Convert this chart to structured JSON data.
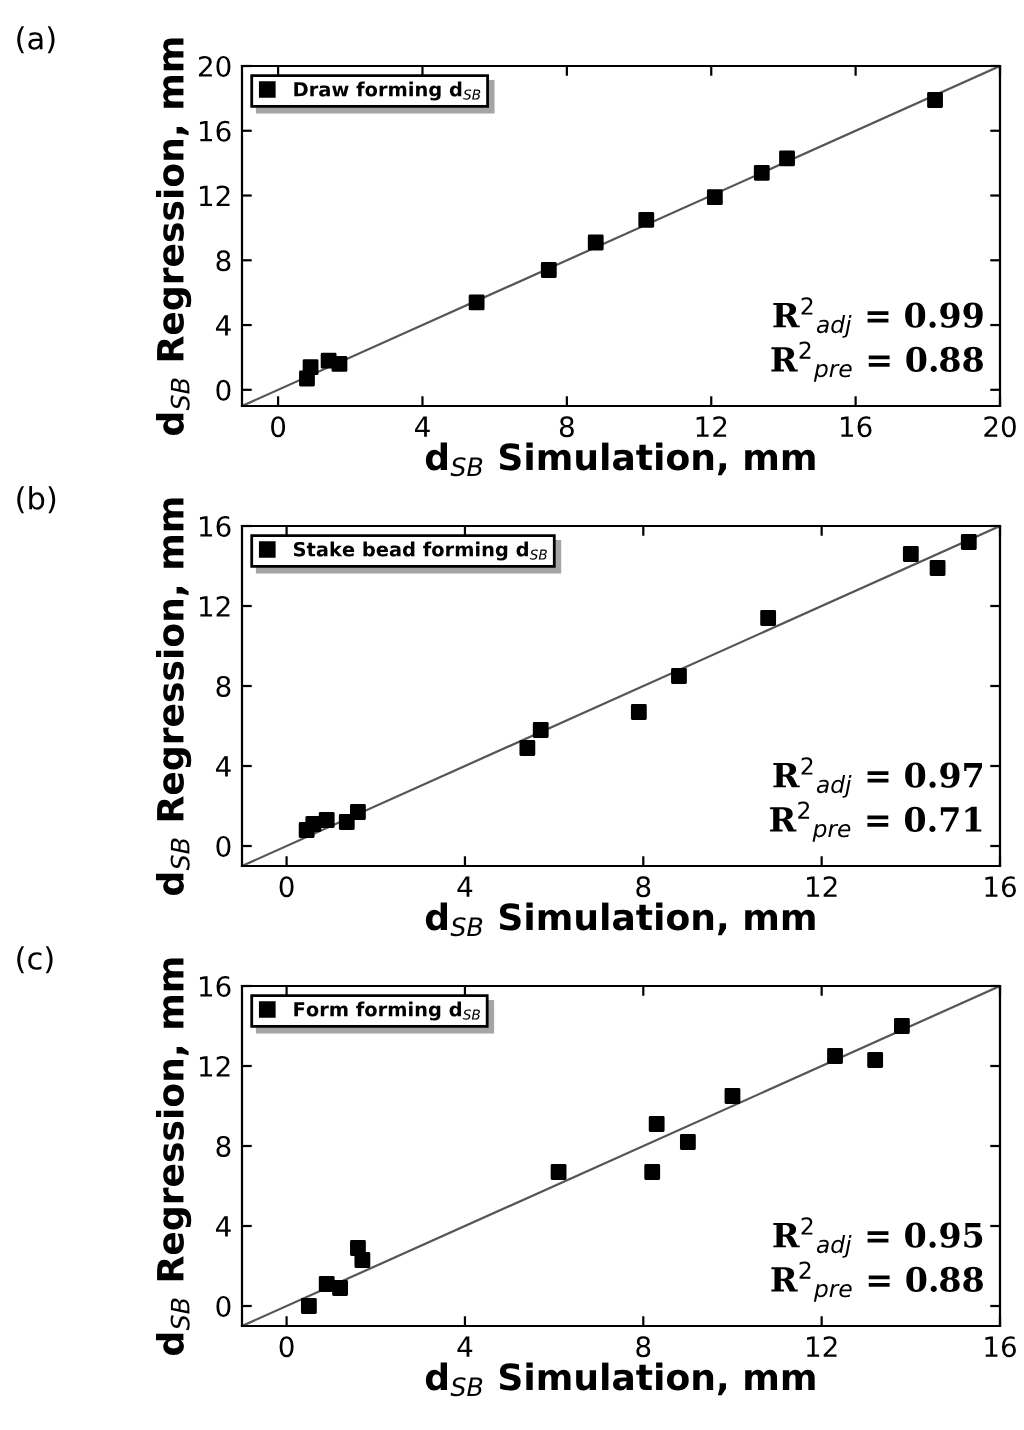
{
  "chart_data": [
    {
      "type": "scatter",
      "title": "(a)",
      "xlabel": "d$_{SB}$ Simulation, mm",
      "ylabel": "d$_{SB}$ Regression, mm",
      "xlim": [
        -1,
        20
      ],
      "ylim": [
        -1,
        20
      ],
      "xticks": [
        0,
        4,
        8,
        12,
        16,
        20
      ],
      "yticks": [
        0,
        4,
        8,
        12,
        16,
        20
      ],
      "legend": "top left",
      "grid": false,
      "series": [
        {
          "name": "Draw forming d$_{SB}$",
          "color": "#000000",
          "marker": "square",
          "x": [
            0.8,
            0.9,
            1.4,
            1.6,
            1.7,
            5.5,
            7.5,
            8.8,
            10.2,
            12.1,
            13.4,
            14.1,
            18.2
          ],
          "values": [
            0.7,
            1.4,
            1.8,
            null,
            1.6,
            5.4,
            7.4,
            9.1,
            10.5,
            11.9,
            13.4,
            14.3,
            17.9
          ]
        },
        {
          "type": "line",
          "color": "#555555",
          "x": [
            -1,
            20
          ],
          "values": [
            -1,
            20
          ]
        }
      ],
      "annotations": [
        "R$^{2}$$_{adj}$ = 0.99",
        "R$^{2}$$_{pre}$ = 0.88"
      ]
    },
    {
      "type": "scatter",
      "title": "(b)",
      "xlabel": "d$_{SB}$ Simulation, mm",
      "ylabel": "d$_{SB}$ Regression, mm",
      "xlim": [
        -1,
        16
      ],
      "ylim": [
        -1,
        16
      ],
      "xticks": [
        0,
        4,
        8,
        12,
        16
      ],
      "yticks": [
        0,
        4,
        8,
        12,
        16
      ],
      "legend": "top left",
      "grid": false,
      "series": [
        {
          "name": "Stake bead forming d$_{SB}$",
          "color": "#000000",
          "marker": "square",
          "x": [
            0.45,
            0.6,
            0.9,
            1.35,
            1.6,
            5.4,
            5.7,
            7.9,
            8.8,
            10.8,
            14.0,
            14.6,
            15.3
          ],
          "values": [
            0.8,
            1.1,
            1.3,
            1.2,
            1.7,
            4.9,
            5.8,
            6.7,
            8.5,
            11.4,
            14.6,
            13.9,
            15.2
          ]
        },
        {
          "type": "line",
          "color": "#555555",
          "x": [
            -1,
            16
          ],
          "values": [
            -1,
            16
          ]
        }
      ],
      "annotations": [
        "R$^{2}$$_{adj}$ = 0.97",
        "R$^{2}$$_{pre}$ = 0.71"
      ]
    },
    {
      "type": "scatter",
      "title": "(c)",
      "xlabel": "d$_{SB}$ Simulation, mm",
      "ylabel": "d$_{SB}$ Regression, mm",
      "xlim": [
        -1,
        16
      ],
      "ylim": [
        -1,
        16
      ],
      "xticks": [
        0,
        4,
        8,
        12,
        16
      ],
      "yticks": [
        0,
        4,
        8,
        12,
        16
      ],
      "legend": "top left",
      "grid": false,
      "series": [
        {
          "name": "Form forming d$_{SB}$",
          "color": "#000000",
          "marker": "square",
          "x": [
            0.5,
            0.9,
            1.2,
            1.6,
            1.7,
            6.1,
            8.2,
            8.3,
            9.0,
            10.0,
            12.3,
            13.2,
            13.8
          ],
          "values": [
            0.0,
            1.1,
            0.9,
            2.9,
            2.3,
            6.7,
            6.7,
            9.1,
            8.2,
            10.5,
            12.5,
            12.3,
            14.0
          ]
        },
        {
          "type": "line",
          "color": "#555555",
          "x": [
            -1,
            16
          ],
          "values": [
            -1,
            16
          ]
        }
      ],
      "annotations": [
        "R$^{2}$$_{adj}$ = 0.95",
        "R$^{2}$$_{pre}$ = 0.88"
      ]
    }
  ]
}
